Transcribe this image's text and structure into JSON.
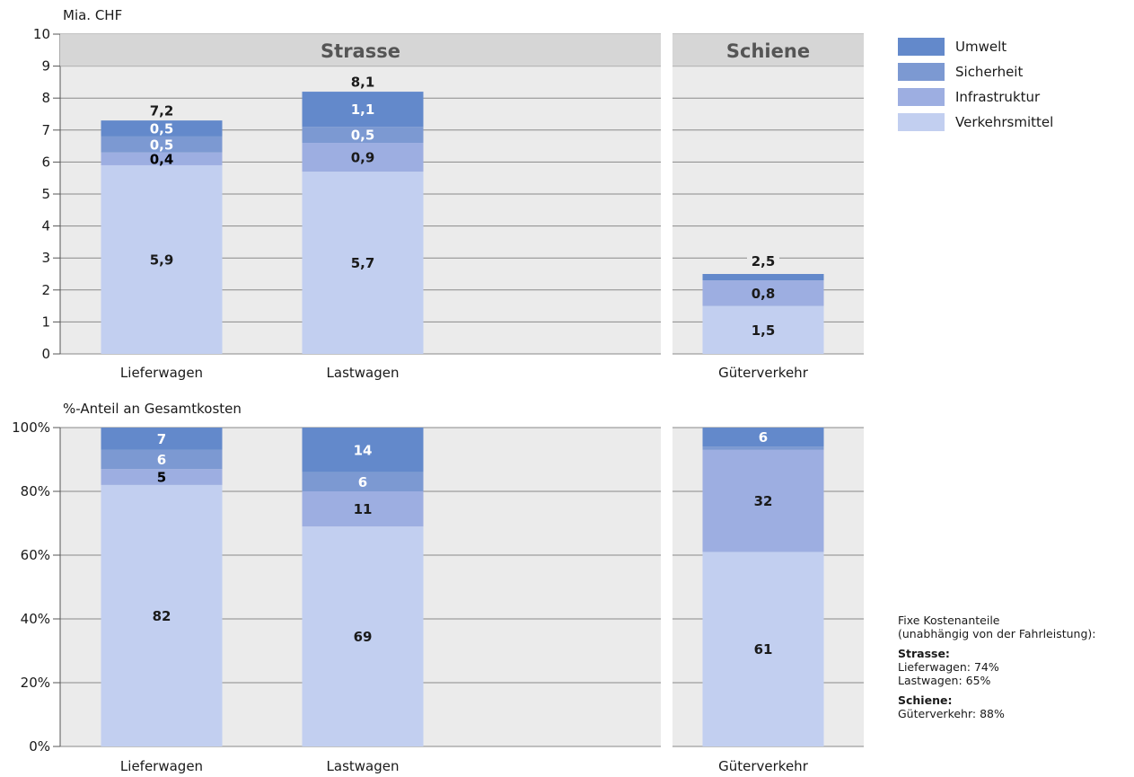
{
  "chart_data": [
    {
      "type": "bar",
      "stacked": true,
      "ylabel": "Mia. CHF",
      "ylim": [
        0,
        10
      ],
      "yticks": [
        "0",
        "1",
        "2",
        "3",
        "4",
        "5",
        "6",
        "7",
        "8",
        "9",
        "10"
      ],
      "grid": true,
      "panels": [
        {
          "title": "Strasse",
          "categories": [
            "Lieferwagen",
            "Lastwagen"
          ]
        },
        {
          "title": "Schiene",
          "categories": [
            "Güterverkehr"
          ]
        }
      ],
      "categories": [
        "Lieferwagen",
        "Lastwagen",
        "Güterverkehr"
      ],
      "series": [
        {
          "name": "Verkehrsmittel",
          "values": [
            5.9,
            5.7,
            1.5
          ],
          "labels": [
            "5,9",
            "5,7",
            "1,5"
          ]
        },
        {
          "name": "Infrastruktur",
          "values": [
            0.4,
            0.9,
            0.8
          ],
          "labels": [
            "0,4",
            "0,9",
            "0,8"
          ]
        },
        {
          "name": "Sicherheit",
          "values": [
            0.5,
            0.5,
            0.0
          ],
          "labels": [
            "0,5",
            "0,5",
            ""
          ]
        },
        {
          "name": "Umwelt",
          "values": [
            0.5,
            1.1,
            0.2
          ],
          "labels": [
            "0,5",
            "1,1",
            ""
          ]
        }
      ],
      "totals": [
        7.2,
        8.1,
        2.5
      ],
      "total_labels": [
        "7,2",
        "8,1",
        "2,5"
      ]
    },
    {
      "type": "bar",
      "stacked": true,
      "ylabel": "%-Anteil an Gesamtkosten",
      "ylim": [
        0,
        100
      ],
      "yticks": [
        "0%",
        "20%",
        "40%",
        "60%",
        "80%",
        "100%"
      ],
      "grid": true,
      "categories": [
        "Lieferwagen",
        "Lastwagen",
        "Güterverkehr"
      ],
      "series": [
        {
          "name": "Verkehrsmittel",
          "values": [
            82,
            69,
            61
          ],
          "labels": [
            "82",
            "69",
            "61"
          ]
        },
        {
          "name": "Infrastruktur",
          "values": [
            5,
            11,
            32
          ],
          "labels": [
            "5",
            "11",
            "32"
          ]
        },
        {
          "name": "Sicherheit",
          "values": [
            6,
            6,
            1
          ],
          "labels": [
            "6",
            "6",
            ""
          ]
        },
        {
          "name": "Umwelt",
          "values": [
            7,
            14,
            6
          ],
          "labels": [
            "7",
            "14",
            "6"
          ]
        }
      ]
    }
  ],
  "legend": [
    {
      "name": "Umwelt",
      "color": "#6389CB"
    },
    {
      "name": "Sicherheit",
      "color": "#7C99D2"
    },
    {
      "name": "Infrastruktur",
      "color": "#9DAEE1"
    },
    {
      "name": "Verkehrsmittel",
      "color": "#C2CFF0"
    }
  ],
  "colors": {
    "Verkehrsmittel": "#C2CFF0",
    "Infrastruktur": "#9DAEE1",
    "Sicherheit": "#7C99D2",
    "Umwelt": "#6389CB",
    "panel_bg": "#EBEBEB",
    "panel_title_bg": "#D6D6D6"
  },
  "label_colors": {
    "Verkehrsmittel": [
      "#1a1a1a",
      "#1a1a1a",
      "#1a1a1a"
    ],
    "Infrastruktur": [
      "#000000",
      "#1a1a1a",
      "#1a1a1a"
    ],
    "Sicherheit": [
      "#ffffff",
      "#ffffff",
      "#ffffff"
    ],
    "Umwelt": [
      "#ffffff",
      "#ffffff",
      "#ffffff"
    ]
  },
  "notes": {
    "heading": "Fixe Kostenanteile",
    "subheading": "(unabhängig von der Fahrleistung):",
    "strasse_label": "Strasse:",
    "strasse_line1": "Lieferwagen: 74%",
    "strasse_line2": "Lastwagen: 65%",
    "schiene_label": "Schiene:",
    "schiene_line1": "Güterverkehr: 88%"
  }
}
